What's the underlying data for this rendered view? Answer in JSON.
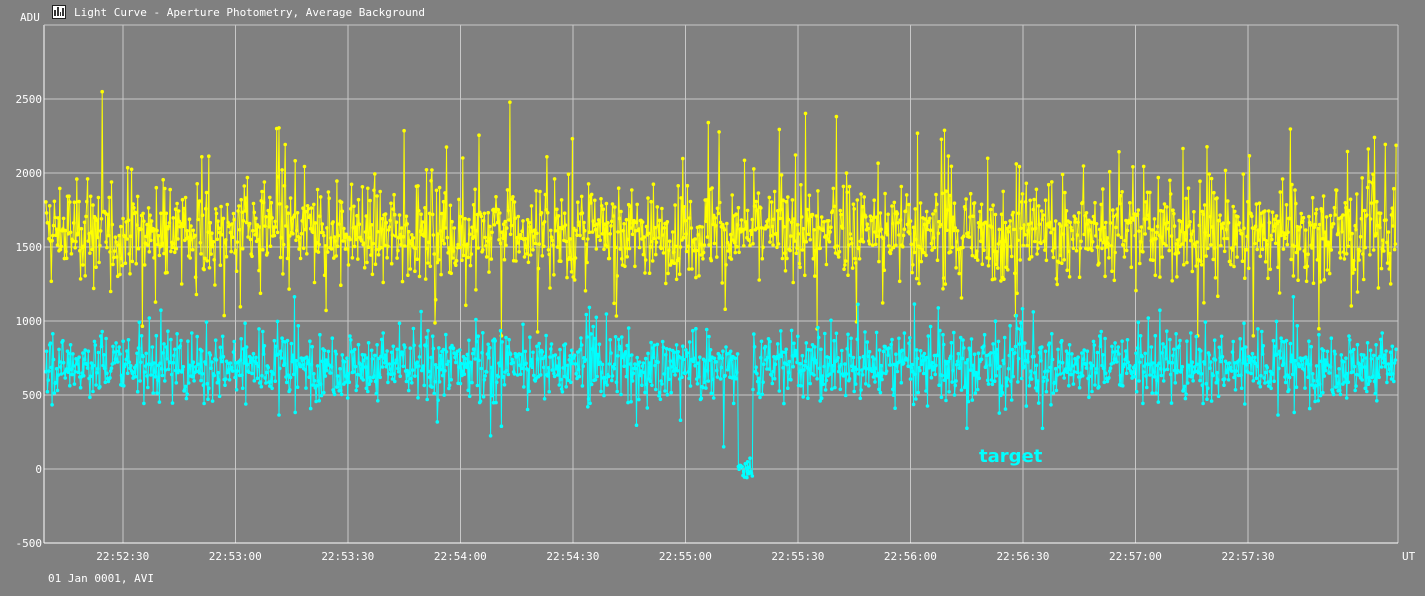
{
  "window": {
    "title": "Light Curve - Aperture Photometry, Average Background",
    "icon": "light-curve-app-icon"
  },
  "footer": {
    "date_label": "01 Jan 0001, AVI"
  },
  "colors": {
    "background": "#808080",
    "grid": "#c8c8c8",
    "comparison_series": "#ffff00",
    "target_series": "#00ffff",
    "text": "#ffffff"
  },
  "chart_data": {
    "type": "line",
    "ylabel": "ADU",
    "xlabel": "UT",
    "y_ticks": [
      -500,
      0,
      500,
      1000,
      1500,
      2000,
      2500
    ],
    "ylim": [
      -500,
      3000
    ],
    "x_ticks": [
      "22:52:30",
      "22:53:00",
      "22:53:30",
      "22:54:00",
      "22:54:30",
      "22:55:00",
      "22:55:30",
      "22:56:00",
      "22:56:30",
      "22:57:00",
      "22:57:30"
    ],
    "xlim": [
      "22:52:09",
      "22:58:10"
    ],
    "grid": true,
    "points_per_series": 1750,
    "series": [
      {
        "name": "",
        "color": "#ffff00",
        "baseline": 1600,
        "noise_sd": 220,
        "spike_max": 2560
      },
      {
        "name": "target",
        "color": "#00ffff",
        "baseline": 700,
        "noise_sd": 150,
        "event": {
          "start": "22:55:14",
          "end": "22:55:18",
          "min_value": -150,
          "mean_value": 0
        }
      }
    ]
  }
}
